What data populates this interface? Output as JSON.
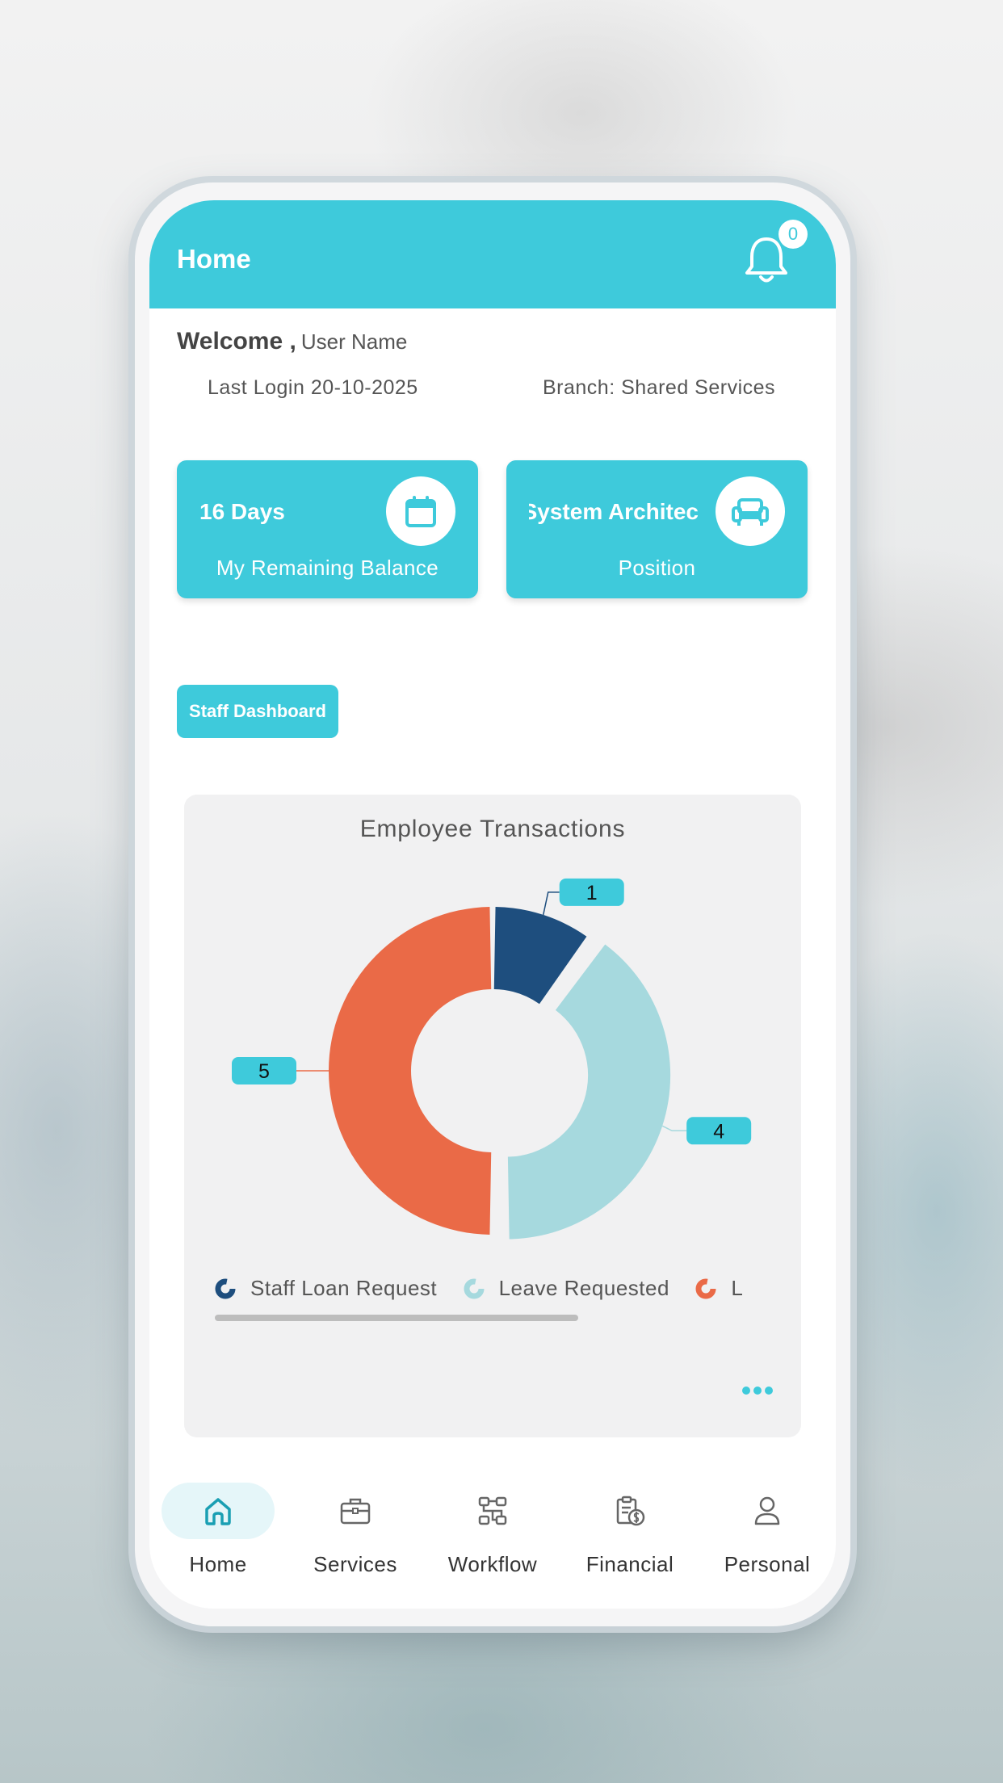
{
  "appbar": {
    "title": "Home",
    "notification_count": "0",
    "bell_icon": "bell-icon"
  },
  "welcome": {
    "greeting": "Welcome ,",
    "user_name": "User Name"
  },
  "info": {
    "last_login": "Last Login 20-10-2025",
    "branch": "Branch: Shared Services"
  },
  "cards": [
    {
      "value": "16 Days",
      "label": "My Remaining Balance",
      "icon": "calendar-icon"
    },
    {
      "value": "IT System Architec",
      "label": "Position",
      "icon": "armchair-icon"
    }
  ],
  "staff_dashboard": {
    "label": "Staff Dashboard"
  },
  "chart_data": {
    "type": "pie",
    "title": "Employee Transactions",
    "donut": true,
    "categories": [
      "Staff Loan Request",
      "Leave Requested",
      "L"
    ],
    "values": [
      1,
      4,
      5
    ],
    "colors": [
      "#1e4e7e",
      "#a6d9de",
      "#ea6a47"
    ],
    "exploded": [
      false,
      true,
      false
    ],
    "data_labels": [
      "1",
      "4",
      "5"
    ],
    "legend_position": "bottom"
  },
  "legend": [
    {
      "label": "Staff Loan Request",
      "color": "#1e4e7e"
    },
    {
      "label": "Leave Requested",
      "color": "#a6d9de"
    },
    {
      "label": "L",
      "color": "#ea6a47"
    }
  ],
  "nav": [
    {
      "label": "Home",
      "icon": "home-icon",
      "active": true
    },
    {
      "label": "Services",
      "icon": "briefcase-icon",
      "active": false
    },
    {
      "label": "Workflow",
      "icon": "workflow-icon",
      "active": false
    },
    {
      "label": "Financial",
      "icon": "financial-icon",
      "active": false
    },
    {
      "label": "Personal",
      "icon": "person-icon",
      "active": false
    }
  ],
  "colors": {
    "accent": "#3ecadb",
    "nav_active_bg": "#e5f6f9"
  }
}
